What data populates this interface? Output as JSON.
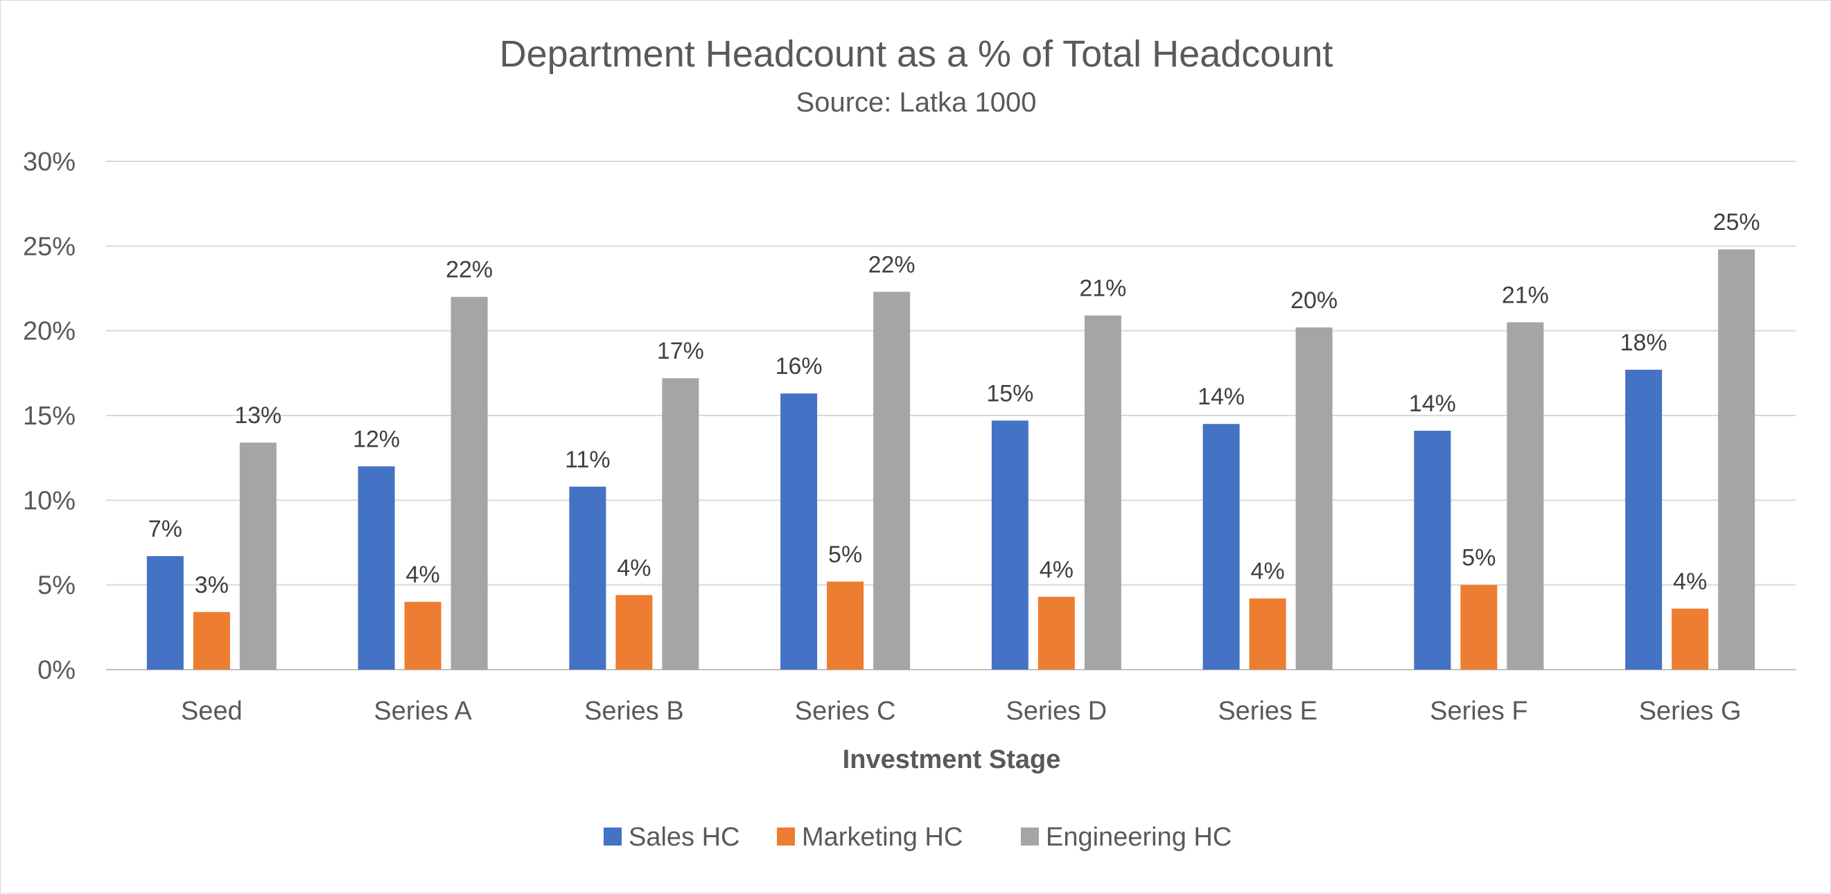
{
  "chart_data": {
    "type": "bar",
    "title": "Department Headcount as a % of Total Headcount",
    "subtitle": "Source:  Latka 1000",
    "xlabel": "Investment Stage",
    "ylabel": "",
    "ylim": [
      0,
      30
    ],
    "yticks": [
      0,
      5,
      10,
      15,
      20,
      25,
      30
    ],
    "ytick_labels": [
      "0%",
      "5%",
      "10%",
      "15%",
      "20%",
      "25%",
      "30%"
    ],
    "grid": true,
    "legend_position": "bottom",
    "categories": [
      "Seed",
      "Series A",
      "Series B",
      "Series C",
      "Series D",
      "Series E",
      "Series F",
      "Series G"
    ],
    "series": [
      {
        "name": "Sales HC",
        "color": "#4472c4",
        "values": [
          6.7,
          12.0,
          10.8,
          16.3,
          14.7,
          14.5,
          14.1,
          17.7
        ],
        "labels": [
          "7%",
          "12%",
          "11%",
          "16%",
          "15%",
          "14%",
          "14%",
          "18%"
        ]
      },
      {
        "name": "Marketing HC",
        "color": "#ed7d31",
        "values": [
          3.4,
          4.0,
          4.4,
          5.2,
          4.3,
          4.2,
          5.0,
          3.6
        ],
        "labels": [
          "3%",
          "4%",
          "4%",
          "5%",
          "4%",
          "4%",
          "5%",
          "4%"
        ]
      },
      {
        "name": "Engineering HC",
        "color": "#a5a5a5",
        "values": [
          13.4,
          22.0,
          17.2,
          22.3,
          20.9,
          20.2,
          20.5,
          24.8
        ],
        "labels": [
          "13%",
          "22%",
          "17%",
          "22%",
          "21%",
          "20%",
          "21%",
          "25%"
        ]
      }
    ]
  }
}
